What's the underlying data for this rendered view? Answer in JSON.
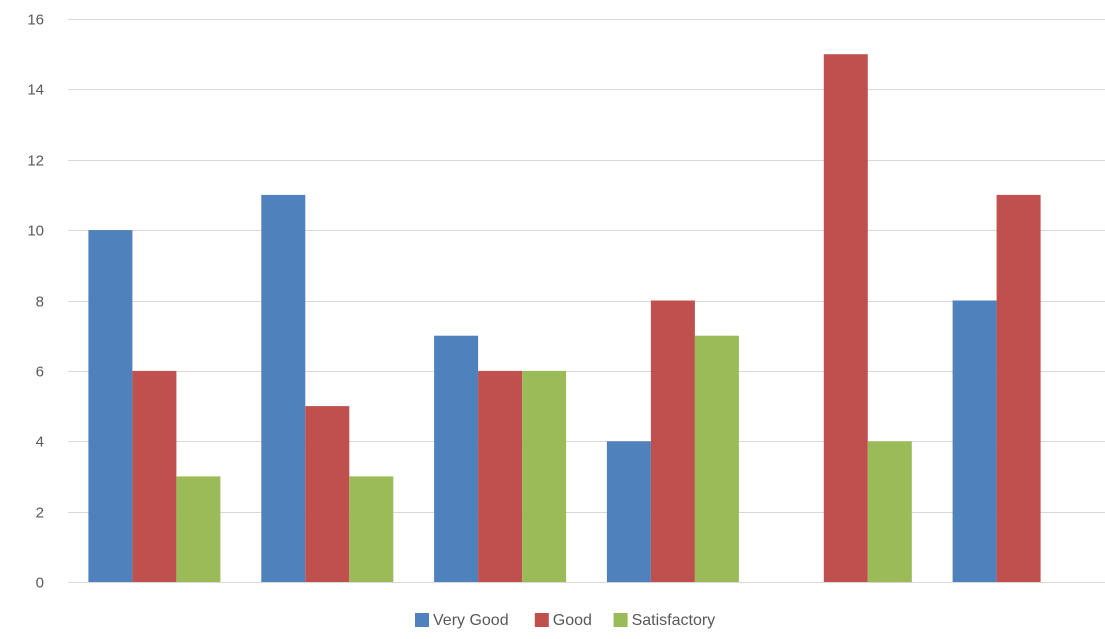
{
  "chart_data": {
    "type": "bar",
    "categories": [
      "",
      "",
      "",
      "",
      "",
      ""
    ],
    "series": [
      {
        "name": "Very Good",
        "color": "#4F81BD",
        "values": [
          10,
          11,
          7,
          4,
          0,
          8
        ]
      },
      {
        "name": "Good",
        "color": "#C0504D",
        "values": [
          6,
          5,
          6,
          8,
          15,
          11
        ]
      },
      {
        "name": "Satisfactory",
        "color": "#9BBB59",
        "values": [
          3,
          3,
          6,
          7,
          4,
          0
        ]
      }
    ],
    "ylim": [
      0,
      16
    ],
    "yticks": [
      0,
      2,
      4,
      6,
      8,
      10,
      12,
      14,
      16
    ],
    "grid": true,
    "legend": "bottom",
    "title": "",
    "xlabel": "",
    "ylabel": ""
  }
}
